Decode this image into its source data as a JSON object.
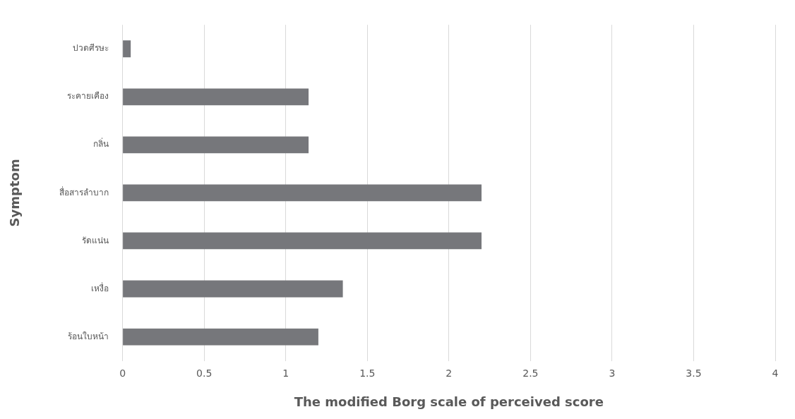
{
  "chart_data": {
    "type": "bar",
    "orientation": "horizontal",
    "xlabel": "The modified Borg scale of perceived score",
    "ylabel": "Symptom",
    "categories": [
      "ปวดศีรษะ",
      "ระคายเคือง",
      "กลิ่น",
      "สื่อสารลำบาก",
      "รัดแน่น",
      "เหงื่อ",
      "ร้อนใบหน้า"
    ],
    "values": [
      0.05,
      1.14,
      1.14,
      2.2,
      2.2,
      1.35,
      1.2
    ],
    "color": "#76777b",
    "xlim": [
      0,
      4
    ],
    "xticks": [
      0,
      0.5,
      1,
      1.5,
      2,
      2.5,
      3,
      3.5,
      4
    ],
    "grid": "x",
    "legend": false
  }
}
